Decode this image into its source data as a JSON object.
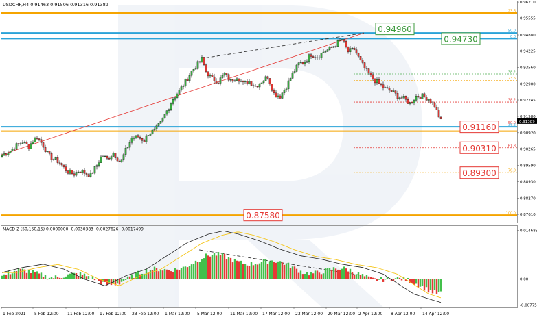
{
  "chart_data": [
    {
      "type": "candlestick",
      "title": "USDCHF,H4",
      "ohlc_header": "0.91463 0.91506 0.91316 0.91389",
      "ylim": [
        0.8728,
        0.9624
      ],
      "y_ticks": [
        {
          "v": 0.9621,
          "label": "0.96210"
        },
        {
          "v": 0.95555,
          "label": "0.95555"
        },
        {
          "v": 0.9488,
          "label": "0.94880"
        },
        {
          "v": 0.94225,
          "label": "0.94225"
        },
        {
          "v": 0.9356,
          "label": "0.93560"
        },
        {
          "v": 0.929,
          "label": "0.92900"
        },
        {
          "v": 0.92245,
          "label": "0.92245"
        },
        {
          "v": 0.9158,
          "label": "0.91580"
        },
        {
          "v": 0.9092,
          "label": "0.90920"
        },
        {
          "v": 0.90265,
          "label": "0.90265"
        },
        {
          "v": 0.8959,
          "label": "0.89590"
        },
        {
          "v": 0.8893,
          "label": "0.88930"
        },
        {
          "v": 0.8827,
          "label": "0.88270"
        },
        {
          "v": 0.8761,
          "label": "0.87610"
        }
      ],
      "current_price": {
        "v": 0.91389,
        "label": "0.91389"
      },
      "x_labels": [
        "1 Feb 2021",
        "5 Feb 12:00",
        "11 Feb 12:00",
        "17 Feb 12:00",
        "23 Feb 12:00",
        "1 Mar 12:00",
        "5 Mar 12:00",
        "11 Mar 12:00",
        "17 Mar 12:00",
        "23 Mar 12:00",
        "29 Mar 12:00",
        "2 Apr 12:00",
        "8 Apr 12:00",
        "14 Apr 12:00"
      ],
      "levels": [
        {
          "v": 0.9577,
          "pct": "23.6",
          "color": "#f5a400",
          "thick": true
        },
        {
          "v": 0.9496,
          "pct": "50.0",
          "color": "#2aa3d8",
          "thick": true
        },
        {
          "v": 0.9473,
          "pct": "0.0",
          "color": "#2aa3d8",
          "thick": true
        },
        {
          "v": 0.933,
          "pct": "38.2",
          "color": "#4caf50",
          "thick": false
        },
        {
          "v": 0.9303,
          "pct": "23.6",
          "color": "#f5a400",
          "thick": false
        },
        {
          "v": 0.9216,
          "pct": "38.2",
          "color": "#e53935",
          "thick": false
        },
        {
          "v": 0.9123,
          "pct": "50.0",
          "color": "#e53935",
          "thick": false
        },
        {
          "v": 0.9116,
          "pct": "38.2",
          "color": "#2aa3d8",
          "thick": true
        },
        {
          "v": 0.9098,
          "pct": "",
          "color": "#f5a400",
          "thick": true
        },
        {
          "v": 0.9031,
          "pct": "61.8",
          "color": "#e53935",
          "thick": false
        },
        {
          "v": 0.893,
          "pct": "76.0",
          "color": "#f5a400",
          "thick": false
        },
        {
          "v": 0.8758,
          "pct": "100.0",
          "color": "#f5a400",
          "thick": true
        }
      ],
      "boxed_labels": [
        {
          "text": "0.94960",
          "v": 0.9496,
          "color": "#3c9a3c"
        },
        {
          "text": "0.94730",
          "v": 0.9473,
          "color": "#3c9a3c"
        },
        {
          "text": "0.91160",
          "v": 0.9116,
          "color": "#e53935"
        },
        {
          "text": "0.90310",
          "v": 0.9031,
          "color": "#e53935"
        },
        {
          "text": "0.89300",
          "v": 0.893,
          "color": "#e53935"
        },
        {
          "text": "0.87580",
          "v": 0.8758,
          "color": "#e53935"
        }
      ],
      "price_path": [
        [
          0,
          0.9
        ],
        [
          8,
          0.902
        ],
        [
          14,
          0.904
        ],
        [
          20,
          0.9055
        ],
        [
          26,
          0.9035
        ],
        [
          30,
          0.906
        ],
        [
          34,
          0.9075
        ],
        [
          40,
          0.904
        ],
        [
          45,
          0.9
        ],
        [
          50,
          0.8985
        ],
        [
          55,
          0.8975
        ],
        [
          60,
          0.895
        ],
        [
          65,
          0.893
        ],
        [
          70,
          0.8925
        ],
        [
          75,
          0.894
        ],
        [
          80,
          0.893
        ],
        [
          86,
          0.892
        ],
        [
          92,
          0.896
        ],
        [
          97,
          0.9
        ],
        [
          102,
          0.8985
        ],
        [
          108,
          0.901
        ],
        [
          115,
          0.897
        ],
        [
          120,
          0.902
        ],
        [
          126,
          0.907
        ],
        [
          132,
          0.9075
        ],
        [
          138,
          0.906
        ],
        [
          142,
          0.909
        ],
        [
          148,
          0.91
        ],
        [
          154,
          0.913
        ],
        [
          160,
          0.918
        ],
        [
          166,
          0.923
        ],
        [
          172,
          0.926
        ],
        [
          178,
          0.93
        ],
        [
          184,
          0.934
        ],
        [
          190,
          0.937
        ],
        [
          194,
          0.939
        ],
        [
          198,
          0.934
        ],
        [
          204,
          0.931
        ],
        [
          210,
          0.93
        ],
        [
          216,
          0.933
        ],
        [
          222,
          0.93
        ],
        [
          228,
          0.932
        ],
        [
          234,
          0.929
        ],
        [
          240,
          0.93
        ],
        [
          246,
          0.928
        ],
        [
          252,
          0.93
        ],
        [
          258,
          0.932
        ],
        [
          264,
          0.925
        ],
        [
          270,
          0.924
        ],
        [
          276,
          0.928
        ],
        [
          282,
          0.933
        ],
        [
          288,
          0.937
        ],
        [
          294,
          0.938
        ],
        [
          300,
          0.941
        ],
        [
          306,
          0.94
        ],
        [
          312,
          0.942
        ],
        [
          318,
          0.943
        ],
        [
          324,
          0.945
        ],
        [
          330,
          0.947
        ],
        [
          336,
          0.942
        ],
        [
          342,
          0.943
        ],
        [
          348,
          0.938
        ],
        [
          354,
          0.934
        ],
        [
          360,
          0.931
        ],
        [
          366,
          0.929
        ],
        [
          372,
          0.927
        ],
        [
          378,
          0.926
        ],
        [
          384,
          0.924
        ],
        [
          390,
          0.923
        ],
        [
          396,
          0.921
        ],
        [
          402,
          0.924
        ],
        [
          408,
          0.924
        ],
        [
          414,
          0.923
        ],
        [
          420,
          0.92
        ],
        [
          426,
          0.9139
        ]
      ]
    },
    {
      "type": "histogram",
      "title": "MACD-2 (50,150,15) 0.0000000 -0.0030383 -0.0027626 -0.0017499",
      "ylim": [
        -0.0085,
        0.016
      ],
      "y_ticks": [
        {
          "v": 0.014688,
          "label": "0.014688"
        },
        {
          "v": 0.0,
          "label": "0.00"
        },
        {
          "v": -0.007755,
          "label": "-0.007755"
        }
      ]
    }
  ],
  "watermark_letter": "R"
}
